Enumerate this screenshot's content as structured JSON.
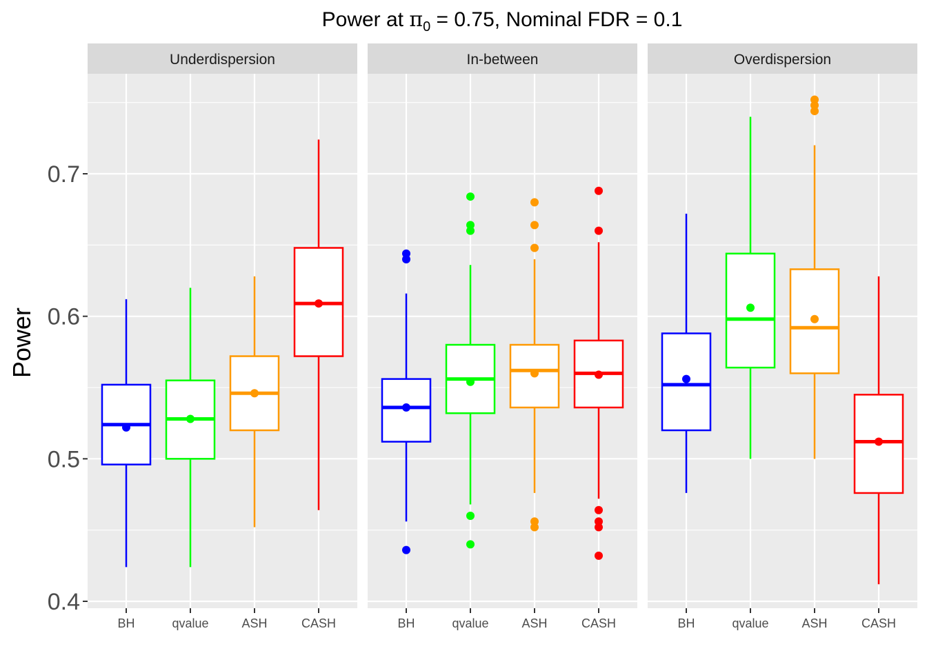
{
  "chart_data": {
    "type": "boxplot",
    "title": {
      "prefix": "Power at ",
      "symbol": "π",
      "subscript": "0",
      "suffix": " = 0.75, Nominal FDR = 0.1"
    },
    "ylabel": "Power",
    "xlabel": "",
    "ylim": [
      0.4,
      0.77
    ],
    "yticks": [
      "0.4",
      "0.5",
      "0.6",
      "0.7"
    ],
    "categories": [
      "BH",
      "qvalue",
      "ASH",
      "CASH"
    ],
    "colors": {
      "BH": "#0000ff",
      "qvalue": "#00ff00",
      "ASH": "#ff9900",
      "CASH": "#ff0000"
    },
    "panel_background": "#ebebeb",
    "strip_background": "#d9d9d9",
    "legend": "none",
    "grid": true,
    "facets": [
      {
        "label": "Underdispersion",
        "boxes": [
          {
            "method": "BH",
            "min": 0.424,
            "q1": 0.496,
            "median": 0.524,
            "q3": 0.552,
            "max": 0.612,
            "mean": 0.522,
            "outliers": []
          },
          {
            "method": "qvalue",
            "min": 0.424,
            "q1": 0.5,
            "median": 0.528,
            "q3": 0.555,
            "max": 0.62,
            "mean": 0.528,
            "outliers": []
          },
          {
            "method": "ASH",
            "min": 0.452,
            "q1": 0.52,
            "median": 0.546,
            "q3": 0.572,
            "max": 0.628,
            "mean": 0.546,
            "outliers": []
          },
          {
            "method": "CASH",
            "min": 0.464,
            "q1": 0.572,
            "median": 0.609,
            "q3": 0.648,
            "max": 0.724,
            "mean": 0.609,
            "outliers": []
          }
        ]
      },
      {
        "label": "In-between",
        "boxes": [
          {
            "method": "BH",
            "min": 0.456,
            "q1": 0.512,
            "median": 0.536,
            "q3": 0.556,
            "max": 0.616,
            "mean": 0.536,
            "outliers": [
              0.436,
              0.64,
              0.644
            ]
          },
          {
            "method": "qvalue",
            "min": 0.468,
            "q1": 0.532,
            "median": 0.556,
            "q3": 0.58,
            "max": 0.636,
            "mean": 0.554,
            "outliers": [
              0.44,
              0.46,
              0.66,
              0.664,
              0.684
            ]
          },
          {
            "method": "ASH",
            "min": 0.476,
            "q1": 0.536,
            "median": 0.562,
            "q3": 0.58,
            "max": 0.64,
            "mean": 0.56,
            "outliers": [
              0.452,
              0.456,
              0.648,
              0.664,
              0.68
            ]
          },
          {
            "method": "CASH",
            "min": 0.472,
            "q1": 0.536,
            "median": 0.56,
            "q3": 0.583,
            "max": 0.652,
            "mean": 0.559,
            "outliers": [
              0.432,
              0.452,
              0.456,
              0.464,
              0.66,
              0.688
            ]
          }
        ]
      },
      {
        "label": "Overdispersion",
        "boxes": [
          {
            "method": "BH",
            "min": 0.476,
            "q1": 0.52,
            "median": 0.552,
            "q3": 0.588,
            "max": 0.672,
            "mean": 0.556,
            "outliers": []
          },
          {
            "method": "qvalue",
            "min": 0.5,
            "q1": 0.564,
            "median": 0.598,
            "q3": 0.644,
            "max": 0.74,
            "mean": 0.606,
            "outliers": []
          },
          {
            "method": "ASH",
            "min": 0.5,
            "q1": 0.56,
            "median": 0.592,
            "q3": 0.633,
            "max": 0.72,
            "mean": 0.598,
            "outliers": [
              0.744,
              0.748,
              0.752
            ]
          },
          {
            "method": "CASH",
            "min": 0.412,
            "q1": 0.476,
            "median": 0.512,
            "q3": 0.545,
            "max": 0.628,
            "mean": 0.512,
            "outliers": []
          }
        ]
      }
    ]
  }
}
